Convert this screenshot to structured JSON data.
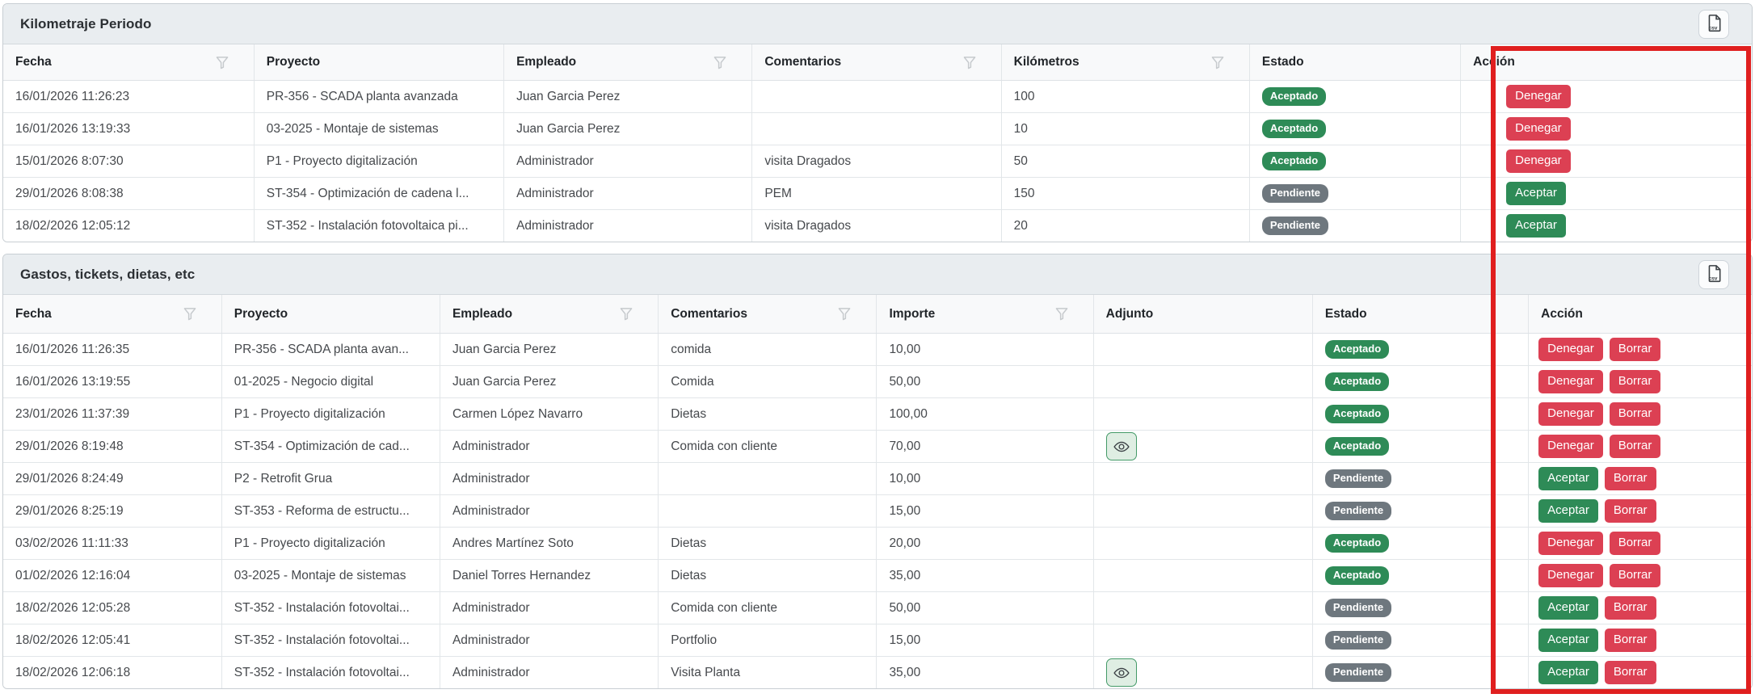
{
  "colors": {
    "status_accepted_green": "#2e8b57",
    "status_pending_gray": "#6e777e",
    "action_danger_red": "#dc4053",
    "action_success_green": "#2e8b57",
    "highlight_border_red": "#e01f1f"
  },
  "icons": {
    "export": "csv-file-icon",
    "filter": "funnel-filter-icon",
    "attachment": "eye-icon"
  },
  "panels": [
    {
      "title": "Kilometraje Periodo",
      "columns": [
        {
          "key": "fecha",
          "label": "Fecha",
          "filter": true
        },
        {
          "key": "proyecto",
          "label": "Proyecto",
          "filter": false
        },
        {
          "key": "empleado",
          "label": "Empleado",
          "filter": true
        },
        {
          "key": "comentarios",
          "label": "Comentarios",
          "filter": true
        },
        {
          "key": "kilometros",
          "label": "Kilómetros",
          "filter": true
        },
        {
          "key": "estado",
          "label": "Estado",
          "filter": false
        },
        {
          "key": "accion",
          "label": "Acción",
          "filter": false
        }
      ],
      "rows": [
        {
          "fecha": "16/01/2026 11:26:23",
          "proyecto": "PR-356 - SCADA planta avanzada",
          "empleado": "Juan Garcia Perez",
          "comentarios": "",
          "kilometros": "100",
          "estado": {
            "label": "Aceptado",
            "color": "green"
          },
          "acciones": [
            {
              "label": "Denegar",
              "color": "red"
            }
          ]
        },
        {
          "fecha": "16/01/2026 13:19:33",
          "proyecto": "03-2025 - Montaje de sistemas",
          "empleado": "Juan Garcia Perez",
          "comentarios": "",
          "kilometros": "10",
          "estado": {
            "label": "Aceptado",
            "color": "green"
          },
          "acciones": [
            {
              "label": "Denegar",
              "color": "red"
            }
          ]
        },
        {
          "fecha": "15/01/2026 8:07:30",
          "proyecto": "P1 - Proyecto digitalización",
          "empleado": "Administrador",
          "comentarios": "visita Dragados",
          "kilometros": "50",
          "estado": {
            "label": "Aceptado",
            "color": "green"
          },
          "acciones": [
            {
              "label": "Denegar",
              "color": "red"
            }
          ]
        },
        {
          "fecha": "29/01/2026 8:08:38",
          "proyecto": "ST-354 - Optimización de cadena l...",
          "empleado": "Administrador",
          "comentarios": "PEM",
          "kilometros": "150",
          "estado": {
            "label": "Pendiente",
            "color": "gray"
          },
          "acciones": [
            {
              "label": "Aceptar",
              "color": "green"
            }
          ]
        },
        {
          "fecha": "18/02/2026 12:05:12",
          "proyecto": "ST-352 - Instalación fotovoltaica pi...",
          "empleado": "Administrador",
          "comentarios": "visita Dragados",
          "kilometros": "20",
          "estado": {
            "label": "Pendiente",
            "color": "gray"
          },
          "acciones": [
            {
              "label": "Aceptar",
              "color": "green"
            }
          ]
        }
      ]
    },
    {
      "title": "Gastos, tickets, dietas, etc",
      "columns": [
        {
          "key": "fecha",
          "label": "Fecha",
          "filter": true
        },
        {
          "key": "proyecto",
          "label": "Proyecto",
          "filter": false
        },
        {
          "key": "empleado",
          "label": "Empleado",
          "filter": true
        },
        {
          "key": "comentarios",
          "label": "Comentarios",
          "filter": true
        },
        {
          "key": "importe",
          "label": "Importe",
          "filter": true
        },
        {
          "key": "adjunto",
          "label": "Adjunto",
          "filter": false
        },
        {
          "key": "estado",
          "label": "Estado",
          "filter": false
        },
        {
          "key": "accion",
          "label": "Acción",
          "filter": false
        }
      ],
      "rows": [
        {
          "fecha": "16/01/2026 11:26:35",
          "proyecto": "PR-356 - SCADA planta avan...",
          "empleado": "Juan Garcia Perez",
          "comentarios": "comida",
          "importe": "10,00",
          "adjunto": false,
          "estado": {
            "label": "Aceptado",
            "color": "green"
          },
          "acciones": [
            {
              "label": "Denegar",
              "color": "red"
            },
            {
              "label": "Borrar",
              "color": "red"
            }
          ]
        },
        {
          "fecha": "16/01/2026 13:19:55",
          "proyecto": "01-2025 - Negocio digital",
          "empleado": "Juan Garcia Perez",
          "comentarios": "Comida",
          "importe": "50,00",
          "adjunto": false,
          "estado": {
            "label": "Aceptado",
            "color": "green"
          },
          "acciones": [
            {
              "label": "Denegar",
              "color": "red"
            },
            {
              "label": "Borrar",
              "color": "red"
            }
          ]
        },
        {
          "fecha": "23/01/2026 11:37:39",
          "proyecto": "P1 - Proyecto digitalización",
          "empleado": "Carmen López Navarro",
          "comentarios": "Dietas",
          "importe": "100,00",
          "adjunto": false,
          "estado": {
            "label": "Aceptado",
            "color": "green"
          },
          "acciones": [
            {
              "label": "Denegar",
              "color": "red"
            },
            {
              "label": "Borrar",
              "color": "red"
            }
          ]
        },
        {
          "fecha": "29/01/2026 8:19:48",
          "proyecto": "ST-354 - Optimización de cad...",
          "empleado": "Administrador",
          "comentarios": "Comida con cliente",
          "importe": "70,00",
          "adjunto": true,
          "estado": {
            "label": "Aceptado",
            "color": "green"
          },
          "acciones": [
            {
              "label": "Denegar",
              "color": "red"
            },
            {
              "label": "Borrar",
              "color": "red"
            }
          ]
        },
        {
          "fecha": "29/01/2026 8:24:49",
          "proyecto": "P2 - Retrofit Grua",
          "empleado": "Administrador",
          "comentarios": "",
          "importe": "10,00",
          "adjunto": false,
          "estado": {
            "label": "Pendiente",
            "color": "gray"
          },
          "acciones": [
            {
              "label": "Aceptar",
              "color": "green"
            },
            {
              "label": "Borrar",
              "color": "red"
            }
          ]
        },
        {
          "fecha": "29/01/2026 8:25:19",
          "proyecto": "ST-353 - Reforma de estructu...",
          "empleado": "Administrador",
          "comentarios": "",
          "importe": "15,00",
          "adjunto": false,
          "estado": {
            "label": "Pendiente",
            "color": "gray"
          },
          "acciones": [
            {
              "label": "Aceptar",
              "color": "green"
            },
            {
              "label": "Borrar",
              "color": "red"
            }
          ]
        },
        {
          "fecha": "03/02/2026 11:11:33",
          "proyecto": "P1 - Proyecto digitalización",
          "empleado": "Andres Martínez Soto",
          "comentarios": "Dietas",
          "importe": "20,00",
          "adjunto": false,
          "estado": {
            "label": "Aceptado",
            "color": "green"
          },
          "acciones": [
            {
              "label": "Denegar",
              "color": "red"
            },
            {
              "label": "Borrar",
              "color": "red"
            }
          ]
        },
        {
          "fecha": "01/02/2026 12:16:04",
          "proyecto": "03-2025 - Montaje de sistemas",
          "empleado": "Daniel Torres Hernandez",
          "comentarios": "Dietas",
          "importe": "35,00",
          "adjunto": false,
          "estado": {
            "label": "Aceptado",
            "color": "green"
          },
          "acciones": [
            {
              "label": "Denegar",
              "color": "red"
            },
            {
              "label": "Borrar",
              "color": "red"
            }
          ]
        },
        {
          "fecha": "18/02/2026 12:05:28",
          "proyecto": "ST-352 - Instalación fotovoltai...",
          "empleado": "Administrador",
          "comentarios": "Comida con cliente",
          "importe": "50,00",
          "adjunto": false,
          "estado": {
            "label": "Pendiente",
            "color": "gray"
          },
          "acciones": [
            {
              "label": "Aceptar",
              "color": "green"
            },
            {
              "label": "Borrar",
              "color": "red"
            }
          ]
        },
        {
          "fecha": "18/02/2026 12:05:41",
          "proyecto": "ST-352 - Instalación fotovoltai...",
          "empleado": "Administrador",
          "comentarios": "Portfolio",
          "importe": "15,00",
          "adjunto": false,
          "estado": {
            "label": "Pendiente",
            "color": "gray"
          },
          "acciones": [
            {
              "label": "Aceptar",
              "color": "green"
            },
            {
              "label": "Borrar",
              "color": "red"
            }
          ]
        },
        {
          "fecha": "18/02/2026 12:06:18",
          "proyecto": "ST-352 - Instalación fotovoltai...",
          "empleado": "Administrador",
          "comentarios": "Visita Planta",
          "importe": "35,00",
          "adjunto": true,
          "estado": {
            "label": "Pendiente",
            "color": "gray"
          },
          "acciones": [
            {
              "label": "Aceptar",
              "color": "green"
            },
            {
              "label": "Borrar",
              "color": "red"
            }
          ]
        }
      ]
    }
  ]
}
